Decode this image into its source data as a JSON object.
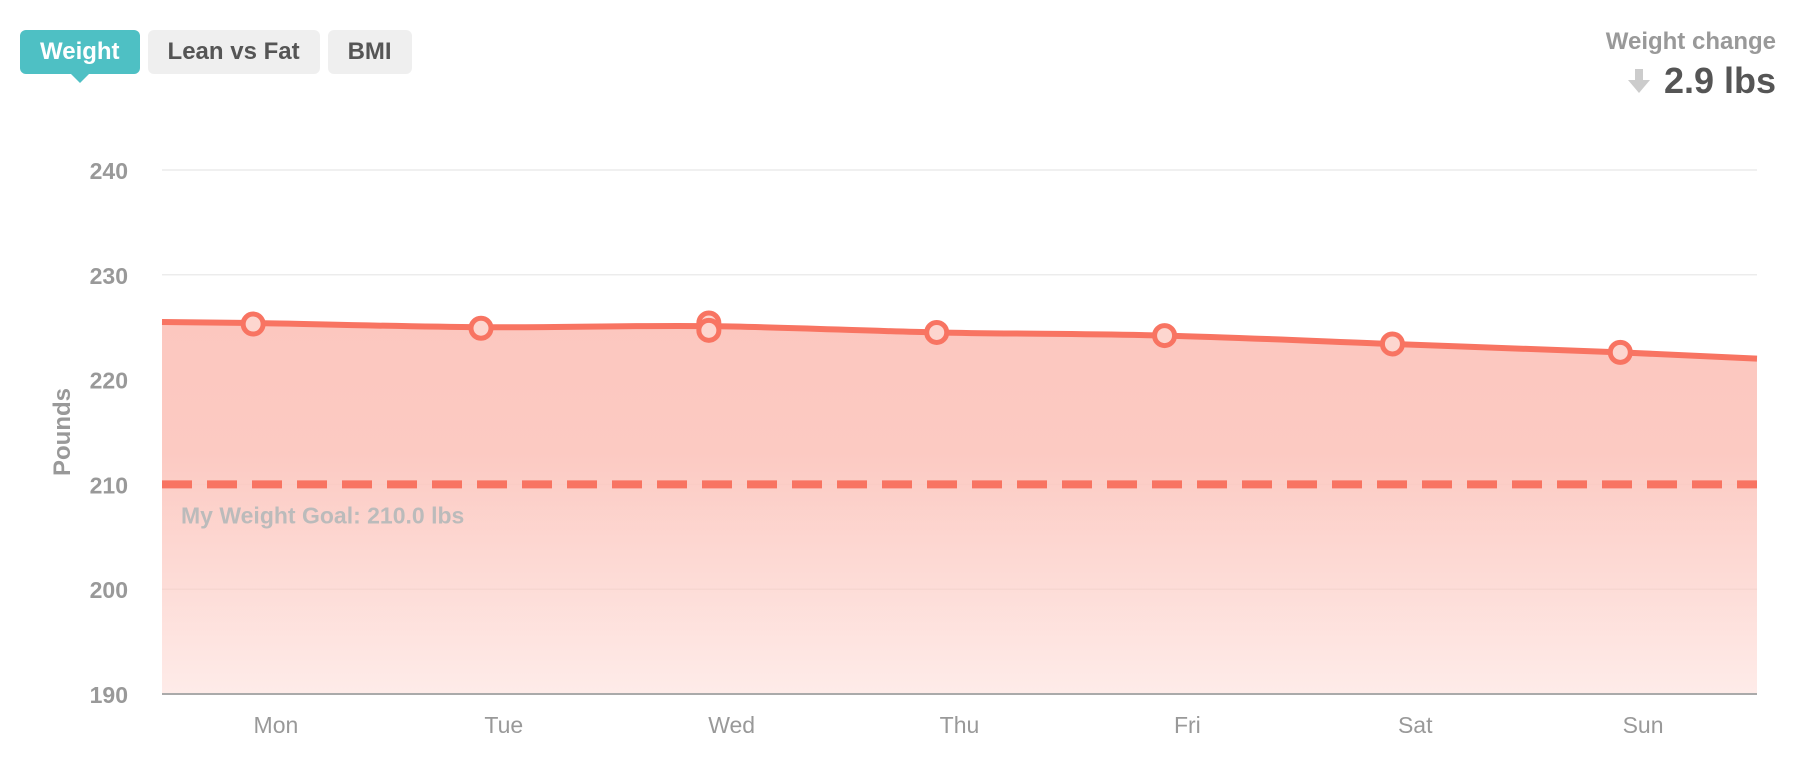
{
  "tabs": [
    {
      "label": "Weight",
      "active": true
    },
    {
      "label": "Lean vs Fat",
      "active": false
    },
    {
      "label": "BMI",
      "active": false
    }
  ],
  "summary": {
    "label": "Weight change",
    "value": "2.9 lbs",
    "direction_icon": "arrow-down-icon"
  },
  "colors": {
    "accent": "#4ec0c4",
    "series": "#f87462",
    "fill": "#fcc7bf",
    "goal_label": "#bbbbbb",
    "axis_text": "#999999"
  },
  "chart_data": {
    "type": "area",
    "ylabel": "Pounds",
    "xlabel": "",
    "ylim": [
      190,
      240
    ],
    "yticks": [
      240,
      230,
      220,
      210,
      200,
      190
    ],
    "categories": [
      "Mon",
      "Tue",
      "Wed",
      "Thu",
      "Fri",
      "Sat",
      "Sun"
    ],
    "points": [
      {
        "x": 0.4,
        "y": 225.3
      },
      {
        "x": 1.4,
        "y": 224.9
      },
      {
        "x": 2.4,
        "y": 225.4
      },
      {
        "x": 2.4,
        "y": 224.7
      },
      {
        "x": 3.4,
        "y": 224.5
      },
      {
        "x": 4.4,
        "y": 224.2
      },
      {
        "x": 5.4,
        "y": 223.4
      },
      {
        "x": 6.4,
        "y": 222.6
      }
    ],
    "line": [
      {
        "x": 0.0,
        "y": 225.5
      },
      {
        "x": 0.4,
        "y": 225.4
      },
      {
        "x": 1.4,
        "y": 225.0
      },
      {
        "x": 2.4,
        "y": 225.1
      },
      {
        "x": 3.4,
        "y": 224.5
      },
      {
        "x": 4.4,
        "y": 224.2
      },
      {
        "x": 5.4,
        "y": 223.4
      },
      {
        "x": 6.4,
        "y": 222.6
      },
      {
        "x": 7.0,
        "y": 222.0
      }
    ],
    "goal": {
      "value": 210,
      "label": "My Weight Goal: 210.0 lbs"
    },
    "grid": true
  }
}
